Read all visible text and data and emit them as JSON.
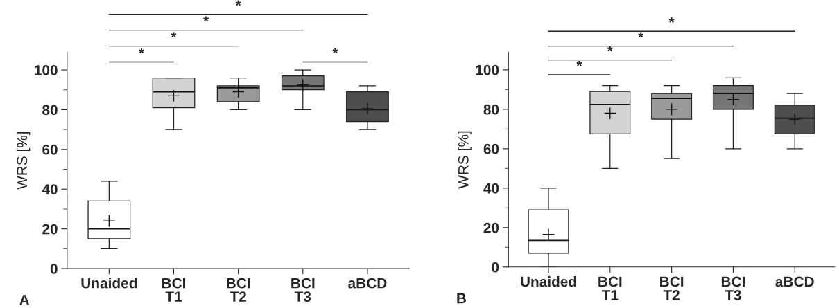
{
  "chart_data": [
    {
      "type": "box",
      "categories": [
        "Unaided",
        "BCI\nT1",
        "BCI\nT2",
        "BCI\nT3",
        "aBCD"
      ],
      "ylabel": "WRS [%]",
      "ylim": [
        0,
        109
      ],
      "yticks": [
        0,
        20,
        40,
        60,
        80,
        100
      ],
      "grid": false,
      "marker": "cross",
      "colors": [
        "#ffffff",
        "#d3d3d3",
        "#9a9a9a",
        "#767676",
        "#4e4e4e"
      ],
      "boxes": [
        {
          "low": 10,
          "q1": 15,
          "median": 20,
          "q3": 34,
          "high": 44,
          "mean": 24
        },
        {
          "low": 70,
          "q1": 81,
          "median": 89,
          "q3": 96,
          "high": 96,
          "mean": 87
        },
        {
          "low": 80,
          "q1": 84,
          "median": 91,
          "q3": 92,
          "high": 96,
          "mean": 89
        },
        {
          "low": 80,
          "q1": 90,
          "median": 92,
          "q3": 97,
          "high": 100,
          "mean": 92.5
        },
        {
          "low": 70,
          "q1": 74,
          "median": 80,
          "q3": 89,
          "high": 92,
          "mean": 80.5
        }
      ],
      "annotations": [
        "*",
        "*",
        "*",
        "*",
        "*",
        "A"
      ]
    },
    {
      "type": "box",
      "categories": [
        "Unaided",
        "BCI\nT1",
        "BCI\nT2",
        "BCI\nT3",
        "aBCD"
      ],
      "ylabel": "WRS [%]",
      "ylim": [
        0,
        109
      ],
      "yticks": [
        0,
        20,
        40,
        60,
        80,
        100
      ],
      "grid": false,
      "marker": "cross",
      "colors": [
        "#ffffff",
        "#d3d3d3",
        "#9a9a9a",
        "#767676",
        "#4e4e4e"
      ],
      "boxes": [
        {
          "low": 0,
          "q1": 7,
          "median": 13.5,
          "q3": 29,
          "high": 40,
          "mean": 16.5
        },
        {
          "low": 50,
          "q1": 67.5,
          "median": 82.5,
          "q3": 89,
          "high": 92,
          "mean": 78
        },
        {
          "low": 55,
          "q1": 75,
          "median": 85.5,
          "q3": 88,
          "high": 92,
          "mean": 80
        },
        {
          "low": 60,
          "q1": 80,
          "median": 88,
          "q3": 92,
          "high": 96,
          "mean": 85
        },
        {
          "low": 60,
          "q1": 67.5,
          "median": 75.5,
          "q3": 82,
          "high": 88,
          "mean": 75
        }
      ],
      "annotations": [
        "*",
        "*",
        "*",
        "*",
        "B"
      ]
    }
  ]
}
